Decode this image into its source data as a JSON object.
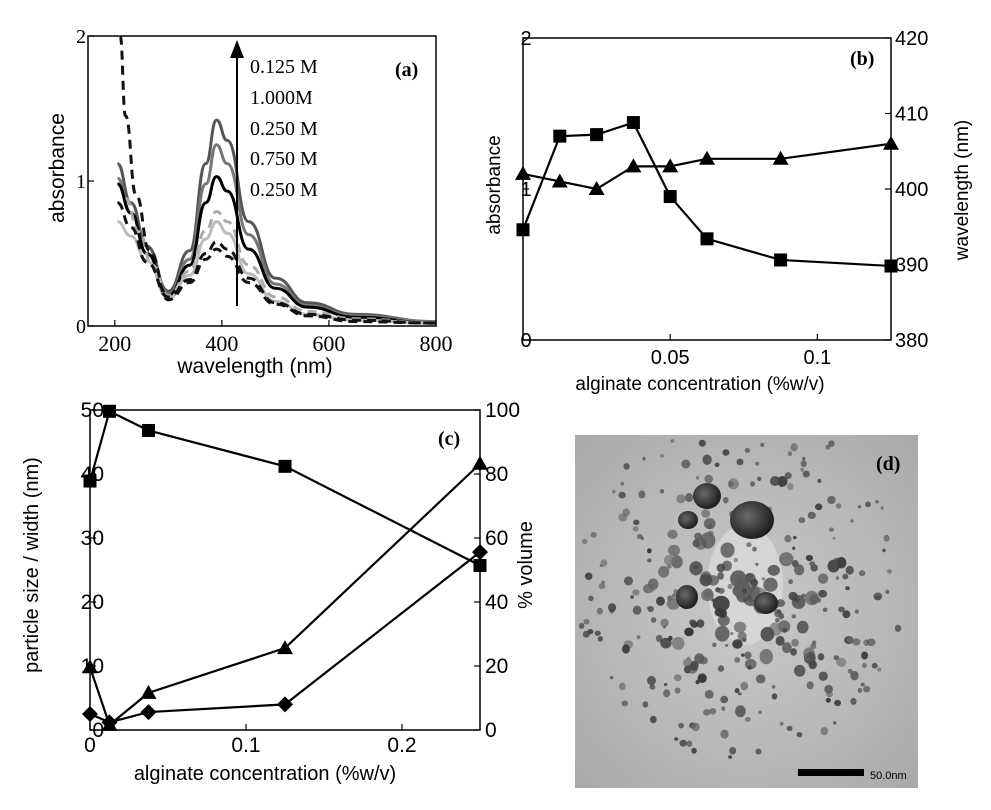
{
  "chart_data": [
    {
      "panel": "(a)",
      "type": "line",
      "xlabel": "wavelength (nm)",
      "ylabel": "absorbance",
      "xlim": [
        150,
        800
      ],
      "ylim": [
        0,
        2
      ],
      "x_ticks": [
        "200",
        "400",
        "600",
        "800"
      ],
      "y_ticks": [
        "0",
        "1",
        "2"
      ],
      "arrow_labels": [
        "0.125 M",
        "1.000M",
        "0.250 M",
        "0.750 M",
        "0.250 M"
      ],
      "series": [
        {
          "color": "#555555",
          "dash": false,
          "points": [
            [
              205,
              1.12
            ],
            [
              230,
              0.85
            ],
            [
              260,
              0.55
            ],
            [
              300,
              0.24
            ],
            [
              340,
              0.52
            ],
            [
              370,
              1.12
            ],
            [
              390,
              1.42
            ],
            [
              410,
              1.28
            ],
            [
              450,
              0.72
            ],
            [
              500,
              0.33
            ],
            [
              560,
              0.16
            ],
            [
              650,
              0.08
            ],
            [
              800,
              0.03
            ]
          ]
        },
        {
          "color": "#777777",
          "dash": false,
          "points": [
            [
              205,
              1.02
            ],
            [
              230,
              0.78
            ],
            [
              260,
              0.5
            ],
            [
              300,
              0.22
            ],
            [
              340,
              0.46
            ],
            [
              370,
              0.98
            ],
            [
              390,
              1.25
            ],
            [
              410,
              1.12
            ],
            [
              450,
              0.63
            ],
            [
              500,
              0.29
            ],
            [
              560,
              0.14
            ],
            [
              650,
              0.07
            ],
            [
              800,
              0.03
            ]
          ]
        },
        {
          "color": "#000000",
          "dash": false,
          "points": [
            [
              205,
              0.98
            ],
            [
              230,
              0.78
            ],
            [
              260,
              0.5
            ],
            [
              300,
              0.21
            ],
            [
              340,
              0.42
            ],
            [
              370,
              0.85
            ],
            [
              390,
              1.03
            ],
            [
              410,
              0.93
            ],
            [
              450,
              0.53
            ],
            [
              500,
              0.26
            ],
            [
              560,
              0.13
            ],
            [
              650,
              0.06
            ],
            [
              800,
              0.02
            ]
          ]
        },
        {
          "color": "#aaaaaa",
          "dash": true,
          "points": [
            [
              220,
              0.88
            ],
            [
              245,
              0.65
            ],
            [
              270,
              0.42
            ],
            [
              300,
              0.21
            ],
            [
              340,
              0.38
            ],
            [
              370,
              0.66
            ],
            [
              390,
              0.79
            ],
            [
              410,
              0.72
            ],
            [
              450,
              0.42
            ],
            [
              500,
              0.2
            ],
            [
              560,
              0.1
            ],
            [
              650,
              0.05
            ],
            [
              800,
              0.02
            ]
          ]
        },
        {
          "color": "#bbbbbb",
          "dash": false,
          "points": [
            [
              205,
              0.72
            ],
            [
              230,
              0.62
            ],
            [
              260,
              0.45
            ],
            [
              300,
              0.19
            ],
            [
              340,
              0.35
            ],
            [
              370,
              0.6
            ],
            [
              390,
              0.72
            ],
            [
              410,
              0.64
            ],
            [
              450,
              0.36
            ],
            [
              500,
              0.17
            ],
            [
              560,
              0.08
            ],
            [
              650,
              0.04
            ],
            [
              800,
              0.02
            ]
          ]
        },
        {
          "color": "#111111",
          "dash": true,
          "points": [
            [
              205,
              0.85
            ],
            [
              230,
              0.68
            ],
            [
              260,
              0.44
            ],
            [
              300,
              0.2
            ],
            [
              340,
              0.32
            ],
            [
              370,
              0.5
            ],
            [
              390,
              0.58
            ],
            [
              410,
              0.53
            ],
            [
              450,
              0.33
            ],
            [
              500,
              0.16
            ],
            [
              560,
              0.08
            ],
            [
              650,
              0.04
            ],
            [
              800,
              0.02
            ]
          ]
        },
        {
          "color": "#111111",
          "dash": true,
          "points": [
            [
              210,
              2.0
            ],
            [
              220,
              1.45
            ],
            [
              240,
              0.9
            ],
            [
              265,
              0.52
            ],
            [
              300,
              0.18
            ],
            [
              340,
              0.3
            ],
            [
              370,
              0.46
            ],
            [
              390,
              0.53
            ],
            [
              410,
              0.48
            ],
            [
              450,
              0.3
            ],
            [
              500,
              0.15
            ],
            [
              560,
              0.07
            ],
            [
              650,
              0.03
            ],
            [
              800,
              0.02
            ]
          ]
        }
      ]
    },
    {
      "panel": "(b)",
      "type": "line",
      "xlabel": "alginate concentration (%w/v)",
      "ylabel": "absorbance",
      "y2label": "wavelength (nm)",
      "xlim": [
        0,
        0.125
      ],
      "ylim": [
        0,
        2
      ],
      "y2lim": [
        380,
        420
      ],
      "x_ticks": [
        "0.05",
        "0.1"
      ],
      "y_ticks": [
        "0",
        "1",
        "2"
      ],
      "y2_ticks": [
        "380",
        "390",
        "400",
        "410",
        "420"
      ],
      "series": [
        {
          "marker": "square",
          "axis": "left",
          "x": [
            0.0,
            0.0125,
            0.025,
            0.0375,
            0.05,
            0.0625,
            0.0875,
            0.125
          ],
          "y": [
            0.73,
            1.35,
            1.36,
            1.44,
            0.95,
            0.67,
            0.53,
            0.49
          ]
        },
        {
          "marker": "triangle",
          "axis": "right",
          "x": [
            0.0,
            0.0125,
            0.025,
            0.0375,
            0.05,
            0.0625,
            0.0875,
            0.125
          ],
          "y": [
            402,
            401,
            400,
            403,
            403,
            404,
            404,
            406
          ]
        }
      ]
    },
    {
      "panel": "(c)",
      "type": "line",
      "xlabel": "alginate concentration (%w/v)",
      "ylabel": "particle size / width (nm)",
      "y2label": "% volume",
      "xlim": [
        0,
        0.25
      ],
      "ylim": [
        0,
        50
      ],
      "y2lim": [
        0,
        100
      ],
      "x_ticks": [
        "0",
        "0.1",
        "0.2"
      ],
      "y_ticks": [
        "0",
        "10",
        "20",
        "30",
        "40",
        "50"
      ],
      "y2_ticks": [
        "0",
        "20",
        "40",
        "60",
        "80",
        "100"
      ],
      "series": [
        {
          "marker": "square",
          "axis": "left",
          "x": [
            0.0,
            0.0125,
            0.0375,
            0.125,
            0.25
          ],
          "y": [
            38.9,
            49.8,
            46.8,
            41.2,
            25.7
          ]
        },
        {
          "marker": "triangle",
          "axis": "left",
          "x": [
            0.0,
            0.0125,
            0.0375,
            0.125,
            0.25
          ],
          "y": [
            9.8,
            0.8,
            5.8,
            12.8,
            41.6
          ]
        },
        {
          "marker": "diamond",
          "axis": "left",
          "x": [
            0.0,
            0.0125,
            0.0375,
            0.125,
            0.25
          ],
          "y": [
            2.5,
            1.2,
            2.8,
            4.0,
            27.8
          ]
        }
      ]
    }
  ],
  "panel_d": {
    "label": "(d)",
    "scalebar_text": "50.0nm"
  }
}
